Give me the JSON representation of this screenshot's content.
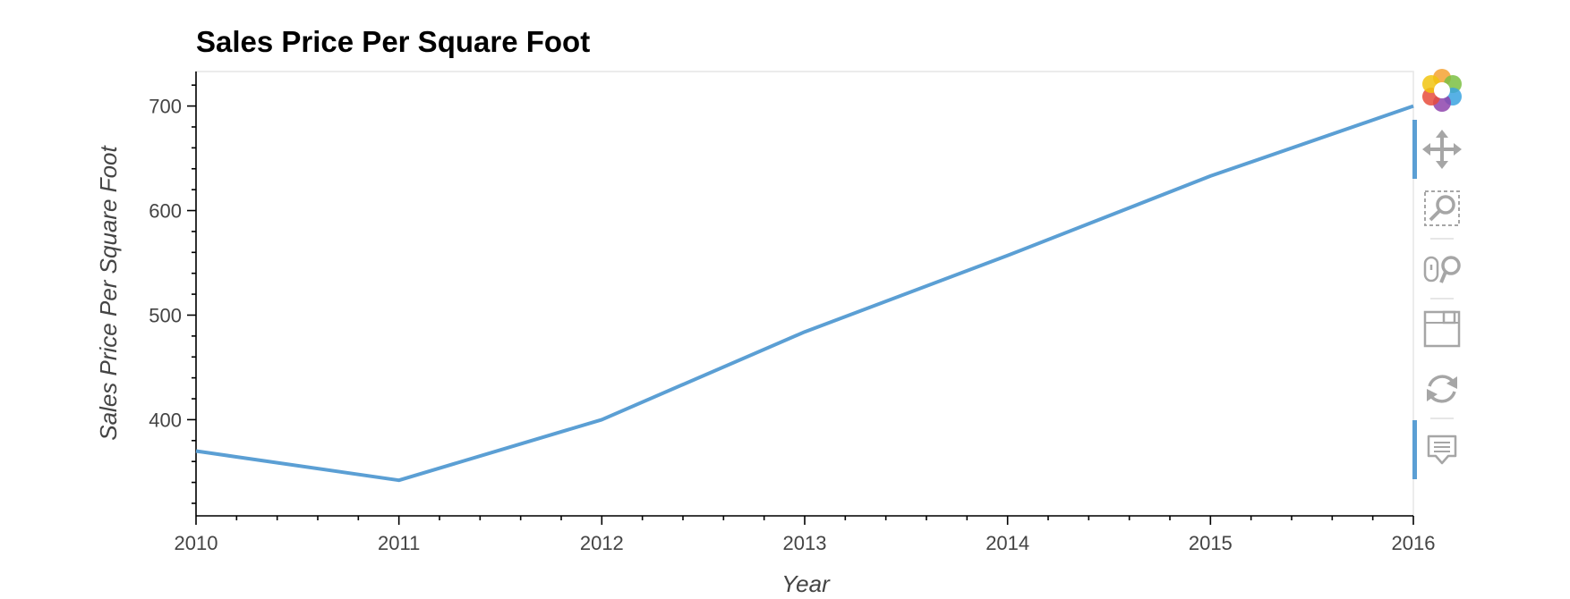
{
  "chart_data": {
    "type": "line",
    "title": "Sales Price Per Square Foot",
    "xlabel": "Year",
    "ylabel": "Sales Price Per Square Foot",
    "xlim": [
      2010,
      2016
    ],
    "ylim": [
      308,
      733
    ],
    "grid": false,
    "x_ticks": [
      2010,
      2011,
      2012,
      2013,
      2014,
      2015,
      2016
    ],
    "x_tick_labels": [
      "2010",
      "2011",
      "2012",
      "2013",
      "2014",
      "2015",
      "2016"
    ],
    "y_ticks": [
      400,
      500,
      600,
      700
    ],
    "y_tick_labels": [
      "400",
      "500",
      "600",
      "700"
    ],
    "series": [
      {
        "x": [
          2010,
          2011,
          2012,
          2013,
          2014,
          2015,
          2016
        ],
        "values": [
          370,
          342,
          400,
          484,
          557,
          633,
          700
        ],
        "color": "#5B9FD4"
      }
    ]
  },
  "toolbar": {
    "tools": [
      {
        "icon": "bokeh-logo-icon",
        "active": false
      },
      {
        "icon": "pan-icon",
        "active": true
      },
      {
        "icon": "box-zoom-icon",
        "active": false
      },
      {
        "icon": "wheel-zoom-icon",
        "active": false
      },
      {
        "icon": "save-icon",
        "active": false
      },
      {
        "icon": "reset-icon",
        "active": false
      },
      {
        "icon": "hover-icon",
        "active": true
      }
    ],
    "active_color": "#5B9FD4"
  }
}
